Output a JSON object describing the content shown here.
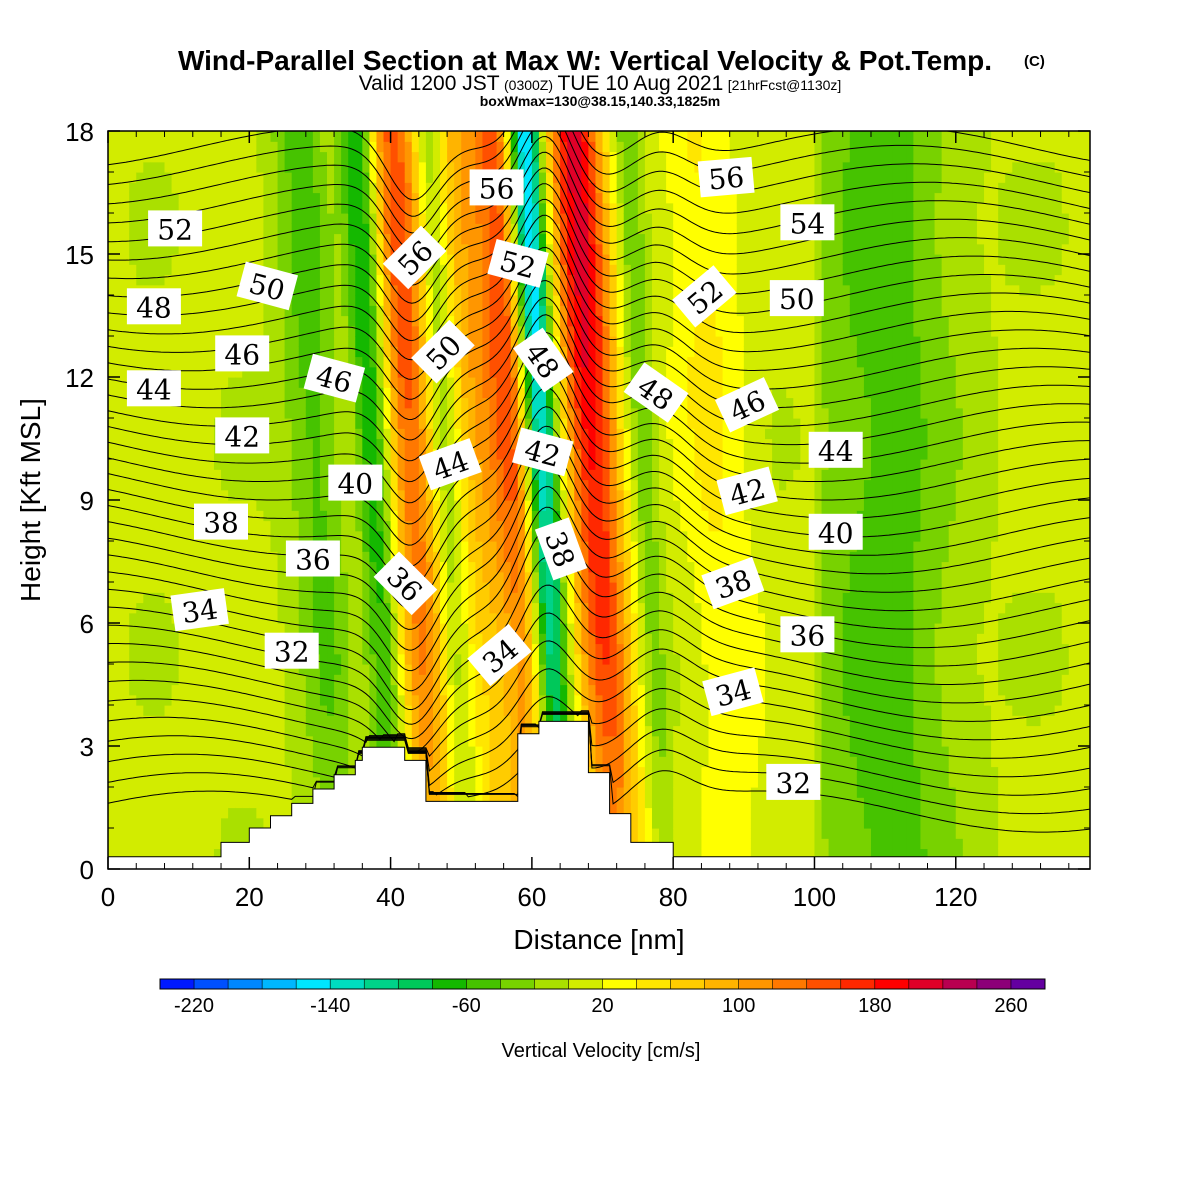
{
  "chart_data": {
    "type": "heatmap",
    "title": "Wind-Parallel Section at Max W: Vertical Velocity & Pot.Temp.",
    "title_mark": "(C)",
    "subtitle_main": "Valid 1200 JST",
    "subtitle_utc": "(0300Z)",
    "subtitle_date": "TUE 10 Aug 2021",
    "subtitle_fcst": "[21hrFcst@1130z]",
    "info_line": "boxWmax=130@38.15,140.33,1825m",
    "xlabel": "Distance [nm]",
    "ylabel": "Height [Kft MSL]",
    "xlim": [
      0,
      139
    ],
    "ylim": [
      0,
      18
    ],
    "x_ticks": [
      "0",
      "20",
      "40",
      "60",
      "80",
      "100",
      "120"
    ],
    "x_tick_values": [
      0,
      20,
      40,
      60,
      80,
      100,
      120
    ],
    "y_ticks": [
      "0",
      "3",
      "6",
      "9",
      "12",
      "15",
      "18"
    ],
    "y_tick_values": [
      0,
      3,
      6,
      9,
      12,
      15,
      18
    ],
    "colorbar": {
      "label": "Vertical Velocity [cm/s]",
      "tick_labels": [
        "-220",
        "-140",
        "-60",
        "20",
        "100",
        "180",
        "260"
      ],
      "tick_values": [
        -220,
        -140,
        -60,
        20,
        100,
        180,
        260
      ],
      "min": -240,
      "max": 280,
      "step": 20,
      "colors": [
        "#0019ff",
        "#0050ff",
        "#0087ff",
        "#00b7ff",
        "#00e6ff",
        "#00ddc0",
        "#00d389",
        "#00c85a",
        "#14b800",
        "#46c300",
        "#78d200",
        "#aae000",
        "#d2ec00",
        "#ffff00",
        "#ffe600",
        "#ffcc00",
        "#ffb400",
        "#ff9600",
        "#ff7800",
        "#ff5000",
        "#ff2800",
        "#ff0000",
        "#e00028",
        "#b80050",
        "#8c0078",
        "#6400a0"
      ]
    },
    "updraft_bands": [
      {
        "x": 43,
        "w": 150,
        "hw": 4
      },
      {
        "x": 53,
        "w": 90,
        "hw": 4
      },
      {
        "x": 69,
        "w": 200,
        "hw": 4
      },
      {
        "x": 58,
        "w": 140,
        "hw": 3
      },
      {
        "x": 35,
        "w": 50,
        "hw": 4
      },
      {
        "x": 86,
        "w": 40,
        "hw": 5
      }
    ],
    "downdraft_bands": [
      {
        "x": 38,
        "w": -130,
        "hw": 2.8
      },
      {
        "x": 61.5,
        "w": -190,
        "hw": 2.5
      },
      {
        "x": 48,
        "w": -60,
        "hw": 2
      },
      {
        "x": 31,
        "w": -70,
        "hw": 5
      },
      {
        "x": 76,
        "w": -50,
        "hw": 2
      }
    ],
    "terrain": [
      [
        0,
        0.3
      ],
      [
        16,
        0.3
      ],
      [
        16,
        0.65
      ],
      [
        20,
        0.65
      ],
      [
        20,
        1.0
      ],
      [
        23,
        1.0
      ],
      [
        23,
        1.3
      ],
      [
        26,
        1.3
      ],
      [
        26,
        1.6
      ],
      [
        29,
        1.6
      ],
      [
        29,
        1.95
      ],
      [
        32,
        1.95
      ],
      [
        32,
        2.3
      ],
      [
        35,
        2.3
      ],
      [
        35,
        2.65
      ],
      [
        36,
        2.65
      ],
      [
        36,
        2.97
      ],
      [
        42,
        2.97
      ],
      [
        42,
        2.65
      ],
      [
        45,
        2.65
      ],
      [
        45,
        1.65
      ],
      [
        58,
        1.65
      ],
      [
        58,
        3.3
      ],
      [
        61,
        3.3
      ],
      [
        61,
        3.6
      ],
      [
        68,
        3.6
      ],
      [
        68,
        2.35
      ],
      [
        71,
        2.35
      ],
      [
        71,
        1.35
      ],
      [
        74,
        1.35
      ],
      [
        74,
        0.65
      ],
      [
        80,
        0.65
      ],
      [
        80,
        0.3
      ],
      [
        139,
        0.3
      ]
    ],
    "theta_levels": [
      32,
      34,
      36,
      38,
      40,
      42,
      44,
      46,
      48,
      50,
      52,
      54,
      56
    ],
    "theta_labels": [
      {
        "text": "52",
        "x": 9.5,
        "y": 15.6,
        "rot": 0
      },
      {
        "text": "50",
        "x": 22.5,
        "y": 14.2,
        "rot": 15
      },
      {
        "text": "48",
        "x": 6.5,
        "y": 13.7,
        "rot": 0
      },
      {
        "text": "46",
        "x": 19,
        "y": 12.55,
        "rot": 0
      },
      {
        "text": "44",
        "x": 6.5,
        "y": 11.7,
        "rot": 0
      },
      {
        "text": "46",
        "x": 32,
        "y": 11.95,
        "rot": 15
      },
      {
        "text": "42",
        "x": 19,
        "y": 10.55,
        "rot": 0
      },
      {
        "text": "40",
        "x": 35,
        "y": 9.4,
        "rot": 0
      },
      {
        "text": "38",
        "x": 16,
        "y": 8.45,
        "rot": 0
      },
      {
        "text": "36",
        "x": 29,
        "y": 7.55,
        "rot": 0
      },
      {
        "text": "34",
        "x": 13,
        "y": 6.3,
        "rot": -8
      },
      {
        "text": "32",
        "x": 26,
        "y": 5.3,
        "rot": 0
      },
      {
        "text": "56",
        "x": 55,
        "y": 16.6,
        "rot": 0
      },
      {
        "text": "56",
        "x": 43.5,
        "y": 14.9,
        "rot": -45
      },
      {
        "text": "52",
        "x": 58,
        "y": 14.75,
        "rot": 15
      },
      {
        "text": "50",
        "x": 47.5,
        "y": 12.6,
        "rot": -45
      },
      {
        "text": "48",
        "x": 61.5,
        "y": 12.4,
        "rot": 55
      },
      {
        "text": "48",
        "x": 77.5,
        "y": 11.6,
        "rot": 35
      },
      {
        "text": "44",
        "x": 48.5,
        "y": 9.85,
        "rot": -20
      },
      {
        "text": "42",
        "x": 61.5,
        "y": 10.15,
        "rot": 15
      },
      {
        "text": "36",
        "x": 42,
        "y": 6.95,
        "rot": 45
      },
      {
        "text": "38",
        "x": 64,
        "y": 7.8,
        "rot": 70
      },
      {
        "text": "34",
        "x": 55.5,
        "y": 5.2,
        "rot": -40
      },
      {
        "text": "56",
        "x": 87.5,
        "y": 16.85,
        "rot": -5
      },
      {
        "text": "54",
        "x": 99,
        "y": 15.75,
        "rot": 0
      },
      {
        "text": "52",
        "x": 84.5,
        "y": 13.95,
        "rot": -40
      },
      {
        "text": "50",
        "x": 97.5,
        "y": 13.9,
        "rot": 0
      },
      {
        "text": "46",
        "x": 90.5,
        "y": 11.3,
        "rot": -25
      },
      {
        "text": "44",
        "x": 103,
        "y": 10.2,
        "rot": 0
      },
      {
        "text": "42",
        "x": 90.5,
        "y": 9.2,
        "rot": -15
      },
      {
        "text": "40",
        "x": 103,
        "y": 8.2,
        "rot": 0
      },
      {
        "text": "38",
        "x": 88.5,
        "y": 6.95,
        "rot": -20
      },
      {
        "text": "36",
        "x": 99,
        "y": 5.7,
        "rot": 0
      },
      {
        "text": "34",
        "x": 88.5,
        "y": 4.3,
        "rot": -15
      },
      {
        "text": "32",
        "x": 97,
        "y": 2.1,
        "rot": 0
      }
    ]
  }
}
